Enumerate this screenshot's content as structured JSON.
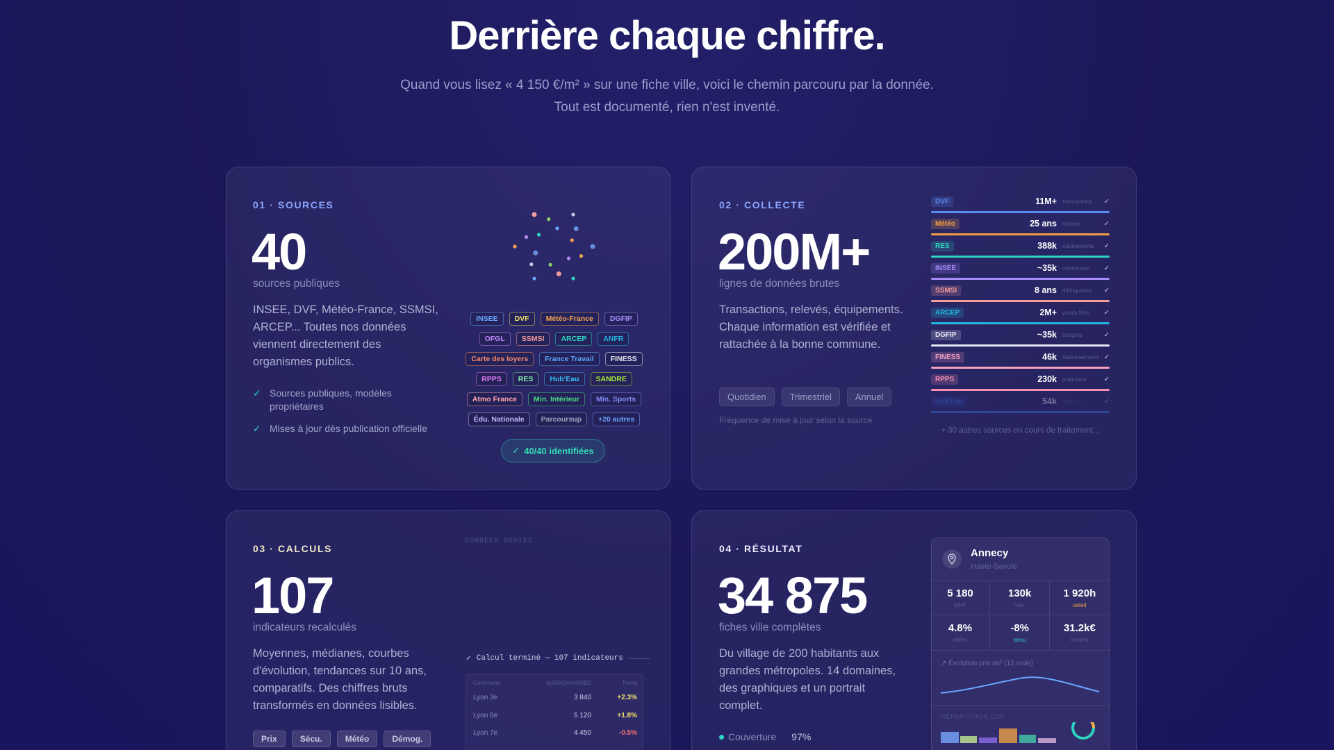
{
  "header": {
    "title": "Derrière chaque chiffre.",
    "subtitle_lines": [
      "Quand vous lisez « 4 150 €/m² » sur une fiche ville, voici le chemin parcouru par la donnée.",
      "Tout est documenté, rien n'est inventé."
    ]
  },
  "cards": [
    {
      "step": "01 · SOURCES",
      "number": "40",
      "number_label": "sources publiques",
      "description": "INSEE, DVF, Météo-France, SSMSI, ARCEP... Toutes nos données viennent directement des organismes publics.",
      "bullets": [
        "Sources publiques, modèles propriétaires",
        "Mises à jour dès publication officielle"
      ],
      "tags": [
        [
          "INSEE",
          "DVF",
          "Météo-France",
          "DGFIP"
        ],
        [
          "OFGL",
          "SSMSI",
          "ARCEP",
          "ANFR"
        ],
        [
          "Carte des loyers",
          "France Travail",
          "FINESS"
        ],
        [
          "RPPS",
          "RES",
          "Hub'Eau",
          "SANDRE"
        ],
        [
          "Atmo France",
          "Min. Intérieur",
          "Min. Sports"
        ],
        [
          "Édu. Nationale",
          "Parcoursup",
          "+20 autres"
        ]
      ],
      "badge": "40/40 identifiées"
    },
    {
      "step": "02 · COLLECTE",
      "number": "200M+",
      "number_label": "lignes de données brutes",
      "description": "Transactions, relevés, équipements. Chaque information est vérifiée et rattachée à la bonne commune.",
      "frequencies": [
        "Quotidien",
        "Trimestriel",
        "Annuel"
      ],
      "frequency_note": "Fréquence de mise à jour selon la source",
      "sources": [
        {
          "name": "DVF",
          "value": "11M+",
          "unit": "transactions"
        },
        {
          "name": "Météo",
          "value": "25 ans",
          "unit": "relevés"
        },
        {
          "name": "RES",
          "value": "388k",
          "unit": "équipements"
        },
        {
          "name": "INSEE",
          "value": "~35k",
          "unit": "communes"
        },
        {
          "name": "SSMSI",
          "value": "8 ans",
          "unit": "délinquance"
        },
        {
          "name": "ARCEP",
          "value": "2M+",
          "unit": "points fibre"
        },
        {
          "name": "DGFIP",
          "value": "~35k",
          "unit": "budgets"
        },
        {
          "name": "FINESS",
          "value": "46k",
          "unit": "établissements"
        },
        {
          "name": "RPPS",
          "value": "230k",
          "unit": "praticiens"
        },
        {
          "name": "Hub'Eau",
          "value": "54k",
          "unit": "stations"
        }
      ],
      "footer": "+ 30 autres sources en cours de traitement..."
    },
    {
      "step": "03 · CALCULS",
      "number": "107",
      "number_label": "indicateurs recalculés",
      "description": "Moyennes, médianes, courbes d'évolution, tendances sur 10 ans, comparatifs. Des chiffres bruts transformés en données lisibles.",
      "tags": [
        "Prix",
        "Sécu.",
        "Météo",
        "Démog."
      ],
      "panel_label": "DONNÉES BRUTES",
      "status": "Calcul terminé — 107 indicateurs",
      "table": {
        "columns": [
          "Commune",
          "\\u20AC/m\\u00B2",
          "Trend"
        ],
        "rows": [
          [
            "Lyon 3e",
            "3 840",
            "+2.3%"
          ],
          [
            "Lyon 6e",
            "5 120",
            "+1.8%"
          ],
          [
            "Lyon 7e",
            "4 450",
            "-0.5%"
          ]
        ]
      }
    },
    {
      "step": "04 · RÉSULTAT",
      "number": "34 875",
      "number_label": "fiches ville complètes",
      "description": "Du village de 200 habitants aux grandes métropoles. 14 domaines, des graphiques et un portrait complet.",
      "coverage_label": "Couverture",
      "coverage_value": "97%",
      "city": {
        "name": "Annecy",
        "region": "Haute-Savoie",
        "stats": [
          {
            "value": "5 180",
            "label": "€/m²"
          },
          {
            "value": "130k",
            "label": "hab."
          },
          {
            "value": "1 920h",
            "label": "soleil"
          },
          {
            "value": "4.8%",
            "label": "chôm"
          },
          {
            "value": "-8%",
            "label": "sécu"
          },
          {
            "value": "31.2k€",
            "label": "revenu"
          }
        ],
        "chart_label": "Évolution prix /m² (12 mois)",
        "breakdown_label": "RÉPARTITION CSP"
      }
    }
  ]
}
